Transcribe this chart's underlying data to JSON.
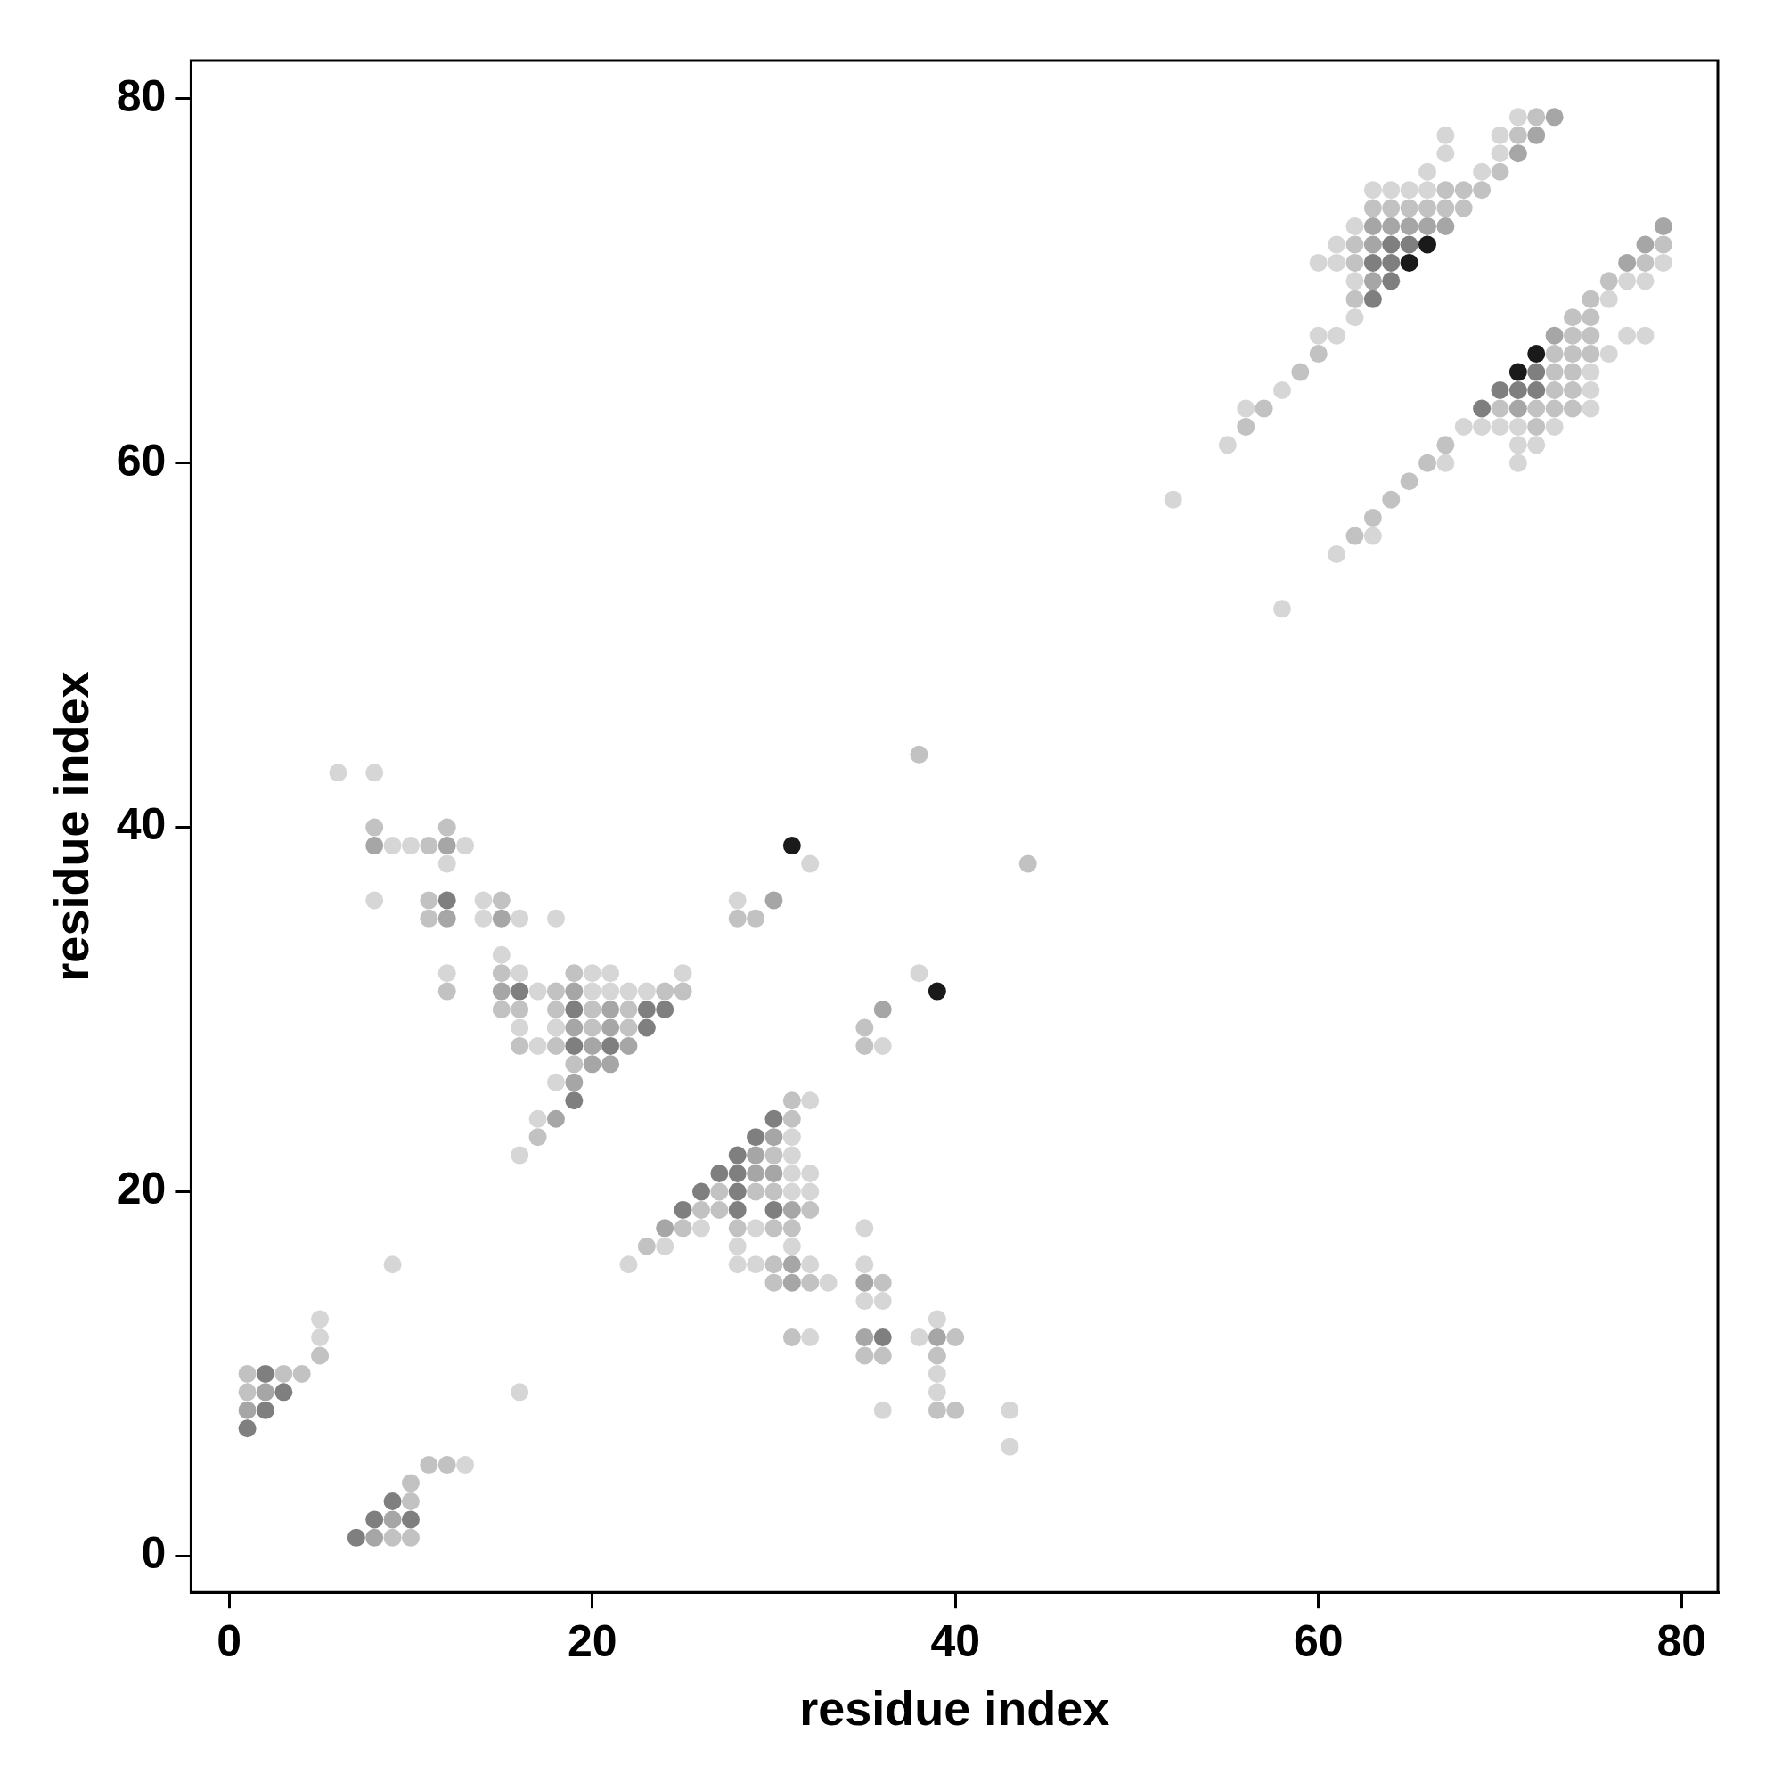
{
  "chart_data": {
    "type": "scatter",
    "xlabel": "residue index",
    "ylabel": "residue index",
    "xlim": [
      -2.1,
      82
    ],
    "ylim": [
      -2,
      82.1
    ],
    "xticks": [
      0,
      20,
      40,
      60,
      80
    ],
    "yticks": [
      0,
      20,
      40,
      60,
      80
    ],
    "marker": "circle",
    "series": [
      {
        "color": "#d6d6d6",
        "x": [
          6,
          8,
          9,
          10,
          13,
          12,
          8,
          14,
          14,
          16,
          18,
          15,
          12,
          16,
          20,
          21,
          25,
          17,
          20,
          21,
          22,
          23,
          16,
          18,
          17,
          18,
          17,
          16,
          32,
          28,
          38,
          32,
          31,
          31,
          31,
          32,
          31,
          32,
          26,
          29,
          35,
          24,
          28,
          31,
          22,
          28,
          29,
          32,
          35,
          33,
          35,
          36,
          39,
          32,
          38,
          39,
          39,
          36,
          43,
          43,
          9,
          5,
          5,
          16,
          13,
          36,
          52,
          58,
          61,
          63,
          67,
          71,
          71,
          72,
          55,
          68,
          69,
          70,
          71,
          73,
          56,
          75,
          58,
          75,
          75,
          76,
          60,
          61,
          77,
          78,
          62,
          76,
          62,
          77,
          78,
          60,
          61,
          79,
          61,
          62,
          63,
          64,
          65,
          66,
          66,
          69,
          67,
          70,
          67,
          70,
          71
        ],
        "values": [
          43,
          43,
          39,
          39,
          39,
          38,
          36,
          36,
          35,
          35,
          35,
          33,
          32,
          32,
          32,
          32,
          32,
          31,
          31,
          31,
          31,
          31,
          29,
          29,
          28,
          26,
          24,
          22,
          38,
          36,
          32,
          25,
          23,
          22,
          21,
          21,
          20,
          20,
          18,
          18,
          18,
          17,
          17,
          17,
          16,
          16,
          16,
          16,
          16,
          15,
          14,
          14,
          13,
          12,
          12,
          10,
          9,
          8,
          8,
          6,
          16,
          13,
          12,
          9,
          5,
          28,
          58,
          52,
          55,
          56,
          60,
          60,
          61,
          61,
          61,
          62,
          62,
          62,
          62,
          62,
          63,
          63,
          64,
          64,
          65,
          66,
          67,
          67,
          67,
          67,
          68,
          69,
          70,
          70,
          70,
          71,
          71,
          71,
          72,
          73,
          75,
          75,
          75,
          75,
          76,
          76,
          77,
          77,
          78,
          78,
          79
        ]
      },
      {
        "color": "#c2c2c2",
        "x": [
          8,
          12,
          11,
          11,
          15,
          11,
          12,
          18,
          15,
          16,
          18,
          20,
          20,
          22,
          22,
          18,
          16,
          18,
          19,
          17,
          15,
          19,
          24,
          25,
          35,
          35,
          29,
          28,
          44,
          38,
          31,
          31,
          30,
          27,
          29,
          30,
          26,
          27,
          32,
          25,
          28,
          30,
          31,
          23,
          30,
          30,
          32,
          36,
          31,
          35,
          36,
          39,
          39,
          40,
          40,
          5,
          1,
          3,
          4,
          1,
          11,
          12,
          10,
          10,
          9,
          10,
          62,
          63,
          64,
          65,
          66,
          67,
          56,
          72,
          57,
          70,
          72,
          73,
          74,
          74,
          73,
          59,
          73,
          74,
          60,
          73,
          74,
          75,
          74,
          75,
          74,
          75,
          62,
          75,
          76,
          62,
          78,
          62,
          79,
          63,
          64,
          65,
          66,
          67,
          68,
          67,
          68,
          69,
          70,
          71,
          72
        ],
        "values": [
          40,
          40,
          39,
          36,
          36,
          35,
          31,
          31,
          30,
          30,
          30,
          30,
          29,
          30,
          29,
          29,
          28,
          28,
          27,
          23,
          32,
          32,
          31,
          31,
          29,
          28,
          35,
          35,
          38,
          44,
          25,
          24,
          22,
          20,
          20,
          20,
          19,
          19,
          19,
          18,
          18,
          18,
          18,
          17,
          16,
          15,
          15,
          15,
          12,
          11,
          11,
          11,
          8,
          8,
          12,
          11,
          10,
          10,
          10,
          9,
          5,
          5,
          4,
          3,
          1,
          1,
          56,
          57,
          58,
          59,
          60,
          61,
          62,
          62,
          63,
          63,
          63,
          63,
          63,
          64,
          64,
          65,
          65,
          65,
          66,
          66,
          66,
          66,
          67,
          67,
          68,
          68,
          69,
          69,
          70,
          71,
          71,
          72,
          72,
          74,
          74,
          74,
          74,
          74,
          74,
          75,
          75,
          75,
          76,
          78,
          79
        ]
      },
      {
        "color": "#a6a6a6",
        "x": [
          8,
          12,
          12,
          15,
          15,
          19,
          20,
          19,
          21,
          21,
          19,
          18,
          20,
          21,
          22,
          30,
          36,
          30,
          29,
          30,
          29,
          31,
          24,
          31,
          31,
          35,
          35,
          39,
          2,
          1,
          9,
          8,
          71,
          63,
          64,
          65,
          66,
          67,
          63,
          63,
          73,
          77,
          78,
          79,
          71,
          72,
          73
        ],
        "values": [
          39,
          39,
          35,
          35,
          31,
          31,
          28,
          29,
          29,
          30,
          26,
          24,
          27,
          27,
          28,
          36,
          30,
          23,
          22,
          21,
          21,
          19,
          18,
          16,
          15,
          15,
          12,
          12,
          9,
          8,
          2,
          1,
          63,
          73,
          73,
          73,
          73,
          73,
          72,
          70,
          67,
          71,
          72,
          73,
          77,
          78,
          79
        ]
      },
      {
        "color": "#7f7f7f",
        "x": [
          12,
          16,
          19,
          23,
          24,
          23,
          19,
          21,
          19,
          28,
          27,
          28,
          26,
          28,
          25,
          28,
          30,
          30,
          29,
          36,
          2,
          3,
          2,
          1,
          9,
          8,
          10,
          7,
          63,
          64,
          63,
          64,
          64,
          65,
          69,
          70,
          71,
          72,
          72
        ],
        "values": [
          36,
          31,
          30,
          30,
          30,
          29,
          28,
          28,
          25,
          22,
          21,
          21,
          20,
          20,
          19,
          19,
          19,
          24,
          23,
          12,
          10,
          9,
          8,
          7,
          3,
          2,
          2,
          1,
          69,
          70,
          71,
          71,
          72,
          72,
          63,
          64,
          64,
          64,
          65
        ]
      },
      {
        "color": "#1a1a1a",
        "x": [
          31,
          39,
          65,
          66,
          71,
          72
        ],
        "values": [
          39,
          31,
          71,
          72,
          65,
          66
        ]
      }
    ]
  }
}
